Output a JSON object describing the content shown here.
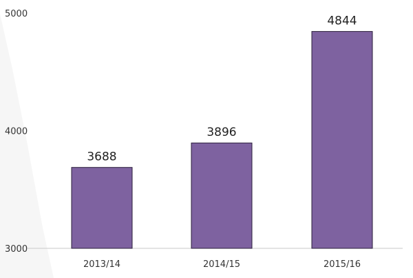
{
  "chart_data": {
    "type": "bar",
    "categories": [
      "2013/14",
      "2014/15",
      "2015/16"
    ],
    "values": [
      3688,
      3896,
      4844
    ],
    "data_labels": [
      "3688",
      "3896",
      "4844"
    ],
    "yticks": [
      3000,
      4000,
      5000
    ],
    "ytick_labels": [
      "3000",
      "4000",
      "5000"
    ],
    "ylim": [
      3000,
      5000
    ],
    "grid": false,
    "colors": {
      "bar_fill": "#7e62a0",
      "bar_stroke": "#2b1f3a",
      "axis": "#c8c8c8"
    }
  }
}
